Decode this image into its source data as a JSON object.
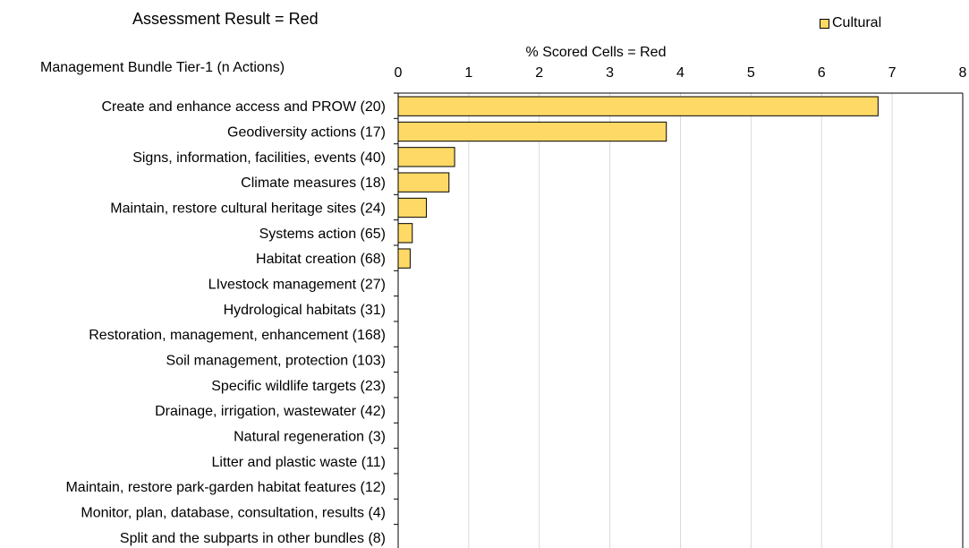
{
  "chart_data": {
    "type": "bar",
    "orientation": "horizontal",
    "title": "Assessment Result = Red",
    "xlabel": "% Scored Cells = Red",
    "ylabel": "Management Bundle Tier-1  (n Actions)",
    "xlim": [
      0,
      8
    ],
    "xticks": [
      "0",
      "1",
      "2",
      "3",
      "4",
      "5",
      "6",
      "7",
      "8"
    ],
    "grid": true,
    "legend_position": "top-right",
    "categories": [
      "Create and enhance access and PROW  (20)",
      "Geodiversity actions  (17)",
      "Signs, information, facilities, events  (40)",
      "Climate measures  (18)",
      "Maintain, restore cultural heritage sites  (24)",
      "Systems action  (65)",
      "Habitat creation  (68)",
      "LIvestock management  (27)",
      "Hydrological habitats  (31)",
      "Restoration, management, enhancement  (168)",
      "Soil management, protection  (103)",
      "Specific wildlife targets  (23)",
      "Drainage, irrigation, wastewater  (42)",
      "Natural regeneration  (3)",
      "Litter and plastic waste  (11)",
      "Maintain, restore park-garden habitat features  (12)",
      "Monitor, plan, database, consultation, results  (4)",
      "Split and the subparts in other bundles  (8)"
    ],
    "series": [
      {
        "name": "Cultural",
        "color": "#FFD966",
        "values": [
          6.8,
          3.8,
          0.8,
          0.72,
          0.4,
          0.2,
          0.17,
          0,
          0,
          0,
          0,
          0,
          0,
          0,
          0,
          0,
          0,
          0
        ]
      }
    ]
  }
}
